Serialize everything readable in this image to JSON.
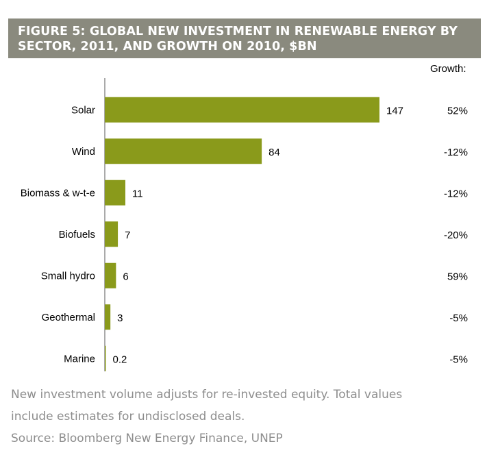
{
  "header": {
    "title": "FIGURE 5: GLOBAL NEW INVESTMENT IN RENEWABLE ENERGY BY SECTOR, 2011, AND GROWTH ON 2010, $BN"
  },
  "growth_header": "Growth:",
  "chart_data": {
    "type": "bar",
    "orientation": "horizontal",
    "title": "FIGURE 5: GLOBAL NEW INVESTMENT IN RENEWABLE ENERGY BY SECTOR, 2011, AND GROWTH ON 2010, $BN",
    "categories": [
      "Solar",
      "Wind",
      "Biomass & w-t-e",
      "Biofuels",
      "Small hydro",
      "Geothermal",
      "Marine"
    ],
    "values": [
      147,
      84,
      11,
      7,
      6,
      3,
      0.2
    ],
    "value_labels": [
      "147",
      "84",
      "11",
      "7",
      "6",
      "3",
      "0.2"
    ],
    "growth": [
      "52%",
      "-12%",
      "-12%",
      "-20%",
      "59%",
      "-5%",
      "-5%"
    ],
    "xlim": [
      0,
      147
    ],
    "grid": false,
    "bar_color": "#8a9a1b"
  },
  "notes": {
    "line1": "New investment volume adjusts for re-invested equity. Total values",
    "line2": "include estimates for undisclosed deals.",
    "source": "Source: Bloomberg New Energy Finance, UNEP"
  }
}
